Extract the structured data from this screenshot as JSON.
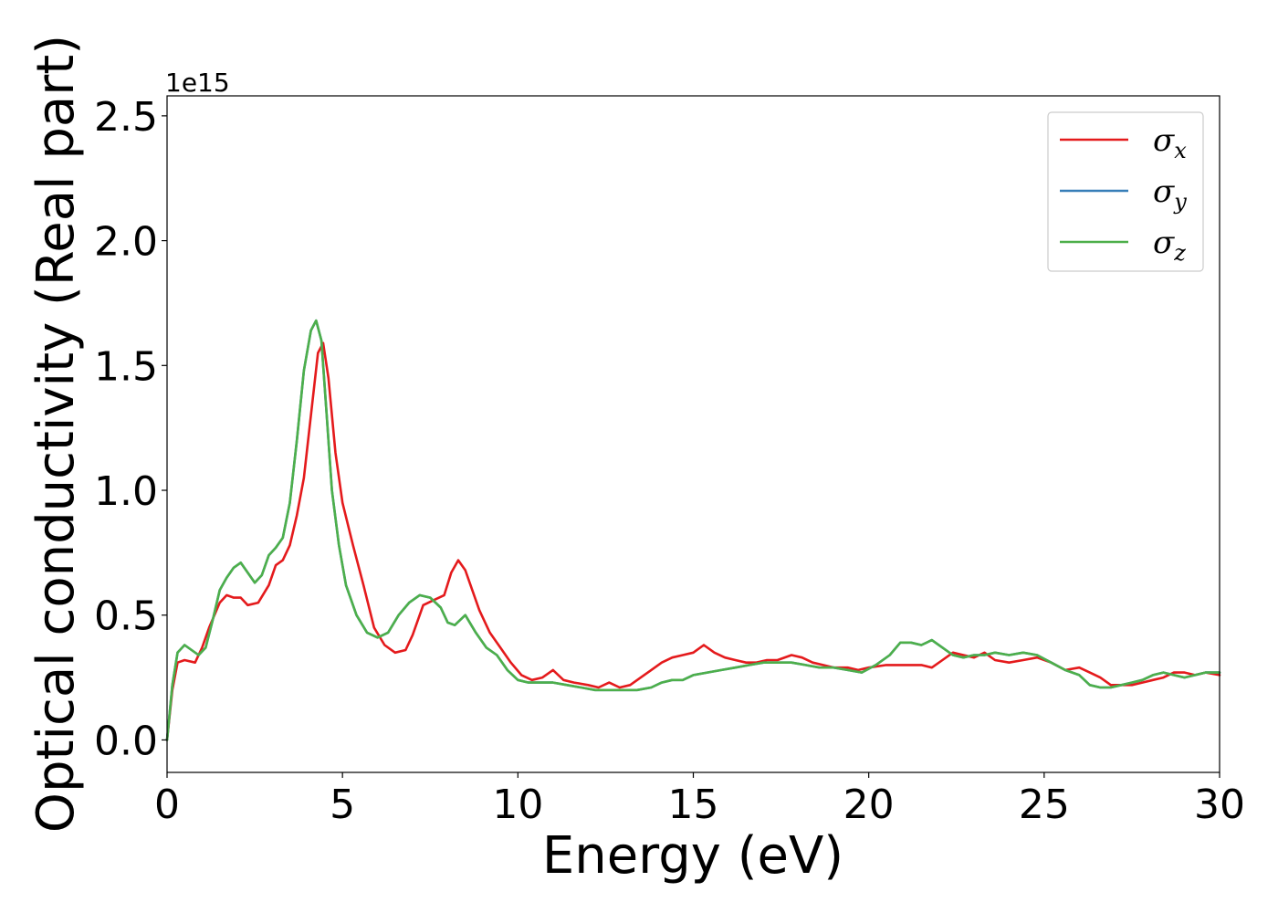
{
  "chart_data": {
    "type": "line",
    "xlabel": "Energy (eV)",
    "ylabel": "Optical conductivity (Real part)",
    "y_offset_text": "1e15",
    "xlim": [
      0,
      30
    ],
    "ylim": [
      -0.13,
      2.58
    ],
    "x_ticks": [
      0,
      5,
      10,
      15,
      20,
      25,
      30
    ],
    "x_tick_labels": [
      "0",
      "5",
      "10",
      "15",
      "20",
      "25",
      "30"
    ],
    "y_ticks": [
      0.0,
      0.5,
      1.0,
      1.5,
      2.0,
      2.5
    ],
    "y_tick_labels": [
      "0.0",
      "0.5",
      "1.0",
      "1.5",
      "2.0",
      "2.5"
    ],
    "grid": false,
    "legend_position": "top-right",
    "series": [
      {
        "name": "σx",
        "symbol": "σ",
        "subscript": "x",
        "color": "#e41a1c",
        "x": [
          0,
          0.15,
          0.3,
          0.5,
          0.8,
          1.0,
          1.2,
          1.5,
          1.7,
          1.9,
          2.1,
          2.3,
          2.6,
          2.9,
          3.1,
          3.3,
          3.5,
          3.7,
          3.9,
          4.1,
          4.3,
          4.45,
          4.6,
          4.8,
          5.0,
          5.3,
          5.6,
          5.9,
          6.2,
          6.5,
          6.8,
          7.0,
          7.3,
          7.6,
          7.9,
          8.1,
          8.3,
          8.5,
          8.7,
          8.9,
          9.2,
          9.5,
          9.8,
          10.1,
          10.4,
          10.7,
          11.0,
          11.3,
          11.6,
          12.0,
          12.3,
          12.6,
          12.9,
          13.2,
          13.5,
          13.8,
          14.1,
          14.4,
          14.7,
          15.0,
          15.3,
          15.6,
          15.9,
          16.2,
          16.5,
          16.8,
          17.1,
          17.4,
          17.8,
          18.1,
          18.4,
          18.7,
          19.0,
          19.4,
          19.7,
          20.0,
          20.5,
          21.0,
          21.5,
          21.8,
          22.1,
          22.4,
          22.7,
          23.0,
          23.3,
          23.6,
          24.0,
          24.4,
          24.8,
          25.2,
          25.6,
          26.0,
          26.3,
          26.6,
          26.9,
          27.2,
          27.5,
          27.8,
          28.1,
          28.4,
          28.7,
          29.0,
          29.3,
          29.6,
          30.0
        ],
        "y": [
          0.0,
          0.2,
          0.31,
          0.32,
          0.31,
          0.37,
          0.45,
          0.55,
          0.58,
          0.57,
          0.57,
          0.54,
          0.55,
          0.62,
          0.7,
          0.72,
          0.78,
          0.9,
          1.05,
          1.3,
          1.55,
          1.59,
          1.45,
          1.15,
          0.95,
          0.78,
          0.62,
          0.45,
          0.38,
          0.35,
          0.36,
          0.42,
          0.54,
          0.56,
          0.58,
          0.67,
          0.72,
          0.68,
          0.6,
          0.52,
          0.43,
          0.37,
          0.31,
          0.26,
          0.24,
          0.25,
          0.28,
          0.24,
          0.23,
          0.22,
          0.21,
          0.23,
          0.21,
          0.22,
          0.25,
          0.28,
          0.31,
          0.33,
          0.34,
          0.35,
          0.38,
          0.35,
          0.33,
          0.32,
          0.31,
          0.31,
          0.32,
          0.32,
          0.34,
          0.33,
          0.31,
          0.3,
          0.29,
          0.29,
          0.28,
          0.29,
          0.3,
          0.3,
          0.3,
          0.29,
          0.32,
          0.35,
          0.34,
          0.33,
          0.35,
          0.32,
          0.31,
          0.32,
          0.33,
          0.31,
          0.28,
          0.29,
          0.27,
          0.25,
          0.22,
          0.22,
          0.22,
          0.23,
          0.24,
          0.25,
          0.27,
          0.27,
          0.26,
          0.27,
          0.26
        ]
      },
      {
        "name": "σy",
        "symbol": "σ",
        "subscript": "y",
        "color": "#377eb8",
        "x": [
          0,
          0.15,
          0.3,
          0.5,
          0.7,
          0.9,
          1.1,
          1.3,
          1.5,
          1.7,
          1.9,
          2.1,
          2.3,
          2.5,
          2.7,
          2.9,
          3.1,
          3.3,
          3.5,
          3.7,
          3.9,
          4.1,
          4.25,
          4.4,
          4.55,
          4.7,
          4.9,
          5.1,
          5.4,
          5.7,
          6.0,
          6.3,
          6.6,
          6.9,
          7.2,
          7.5,
          7.8,
          8.0,
          8.2,
          8.5,
          8.8,
          9.1,
          9.4,
          9.7,
          10.0,
          10.3,
          10.7,
          11.0,
          11.4,
          11.8,
          12.2,
          12.6,
          13.0,
          13.4,
          13.8,
          14.1,
          14.4,
          14.7,
          15.0,
          15.4,
          15.8,
          16.2,
          16.6,
          17.0,
          17.4,
          17.8,
          18.2,
          18.6,
          19.0,
          19.4,
          19.8,
          20.2,
          20.6,
          20.9,
          21.2,
          21.5,
          21.8,
          22.1,
          22.4,
          22.7,
          23.0,
          23.3,
          23.6,
          24.0,
          24.4,
          24.8,
          25.2,
          25.6,
          26.0,
          26.3,
          26.6,
          26.9,
          27.2,
          27.5,
          27.8,
          28.1,
          28.4,
          28.7,
          29.0,
          29.3,
          29.6,
          30.0
        ],
        "y": [
          0.0,
          0.22,
          0.35,
          0.38,
          0.36,
          0.34,
          0.37,
          0.48,
          0.6,
          0.65,
          0.69,
          0.71,
          0.67,
          0.63,
          0.66,
          0.74,
          0.77,
          0.81,
          0.95,
          1.2,
          1.48,
          1.64,
          1.68,
          1.6,
          1.3,
          1.0,
          0.78,
          0.62,
          0.5,
          0.43,
          0.41,
          0.43,
          0.5,
          0.55,
          0.58,
          0.57,
          0.53,
          0.47,
          0.46,
          0.5,
          0.43,
          0.37,
          0.34,
          0.28,
          0.24,
          0.23,
          0.23,
          0.23,
          0.22,
          0.21,
          0.2,
          0.2,
          0.2,
          0.2,
          0.21,
          0.23,
          0.24,
          0.24,
          0.26,
          0.27,
          0.28,
          0.29,
          0.3,
          0.31,
          0.31,
          0.31,
          0.3,
          0.29,
          0.29,
          0.28,
          0.27,
          0.3,
          0.34,
          0.39,
          0.39,
          0.38,
          0.4,
          0.37,
          0.34,
          0.33,
          0.34,
          0.34,
          0.35,
          0.34,
          0.35,
          0.34,
          0.31,
          0.28,
          0.26,
          0.22,
          0.21,
          0.21,
          0.22,
          0.23,
          0.24,
          0.26,
          0.27,
          0.26,
          0.25,
          0.26,
          0.27,
          0.27
        ]
      },
      {
        "name": "σz",
        "symbol": "σ",
        "subscript": "z",
        "color": "#4daf4a",
        "x": [
          0,
          0.15,
          0.3,
          0.5,
          0.7,
          0.9,
          1.1,
          1.3,
          1.5,
          1.7,
          1.9,
          2.1,
          2.3,
          2.5,
          2.7,
          2.9,
          3.1,
          3.3,
          3.5,
          3.7,
          3.9,
          4.1,
          4.25,
          4.4,
          4.55,
          4.7,
          4.9,
          5.1,
          5.4,
          5.7,
          6.0,
          6.3,
          6.6,
          6.9,
          7.2,
          7.5,
          7.8,
          8.0,
          8.2,
          8.5,
          8.8,
          9.1,
          9.4,
          9.7,
          10.0,
          10.3,
          10.7,
          11.0,
          11.4,
          11.8,
          12.2,
          12.6,
          13.0,
          13.4,
          13.8,
          14.1,
          14.4,
          14.7,
          15.0,
          15.4,
          15.8,
          16.2,
          16.6,
          17.0,
          17.4,
          17.8,
          18.2,
          18.6,
          19.0,
          19.4,
          19.8,
          20.2,
          20.6,
          20.9,
          21.2,
          21.5,
          21.8,
          22.1,
          22.4,
          22.7,
          23.0,
          23.3,
          23.6,
          24.0,
          24.4,
          24.8,
          25.2,
          25.6,
          26.0,
          26.3,
          26.6,
          26.9,
          27.2,
          27.5,
          27.8,
          28.1,
          28.4,
          28.7,
          29.0,
          29.3,
          29.6,
          30.0
        ],
        "y": [
          0.0,
          0.22,
          0.35,
          0.38,
          0.36,
          0.34,
          0.37,
          0.48,
          0.6,
          0.65,
          0.69,
          0.71,
          0.67,
          0.63,
          0.66,
          0.74,
          0.77,
          0.81,
          0.95,
          1.2,
          1.48,
          1.64,
          1.68,
          1.6,
          1.3,
          1.0,
          0.78,
          0.62,
          0.5,
          0.43,
          0.41,
          0.43,
          0.5,
          0.55,
          0.58,
          0.57,
          0.53,
          0.47,
          0.46,
          0.5,
          0.43,
          0.37,
          0.34,
          0.28,
          0.24,
          0.23,
          0.23,
          0.23,
          0.22,
          0.21,
          0.2,
          0.2,
          0.2,
          0.2,
          0.21,
          0.23,
          0.24,
          0.24,
          0.26,
          0.27,
          0.28,
          0.29,
          0.3,
          0.31,
          0.31,
          0.31,
          0.3,
          0.29,
          0.29,
          0.28,
          0.27,
          0.3,
          0.34,
          0.39,
          0.39,
          0.38,
          0.4,
          0.37,
          0.34,
          0.33,
          0.34,
          0.34,
          0.35,
          0.34,
          0.35,
          0.34,
          0.31,
          0.28,
          0.26,
          0.22,
          0.21,
          0.21,
          0.22,
          0.23,
          0.24,
          0.26,
          0.27,
          0.26,
          0.25,
          0.26,
          0.27,
          0.27
        ]
      }
    ]
  }
}
